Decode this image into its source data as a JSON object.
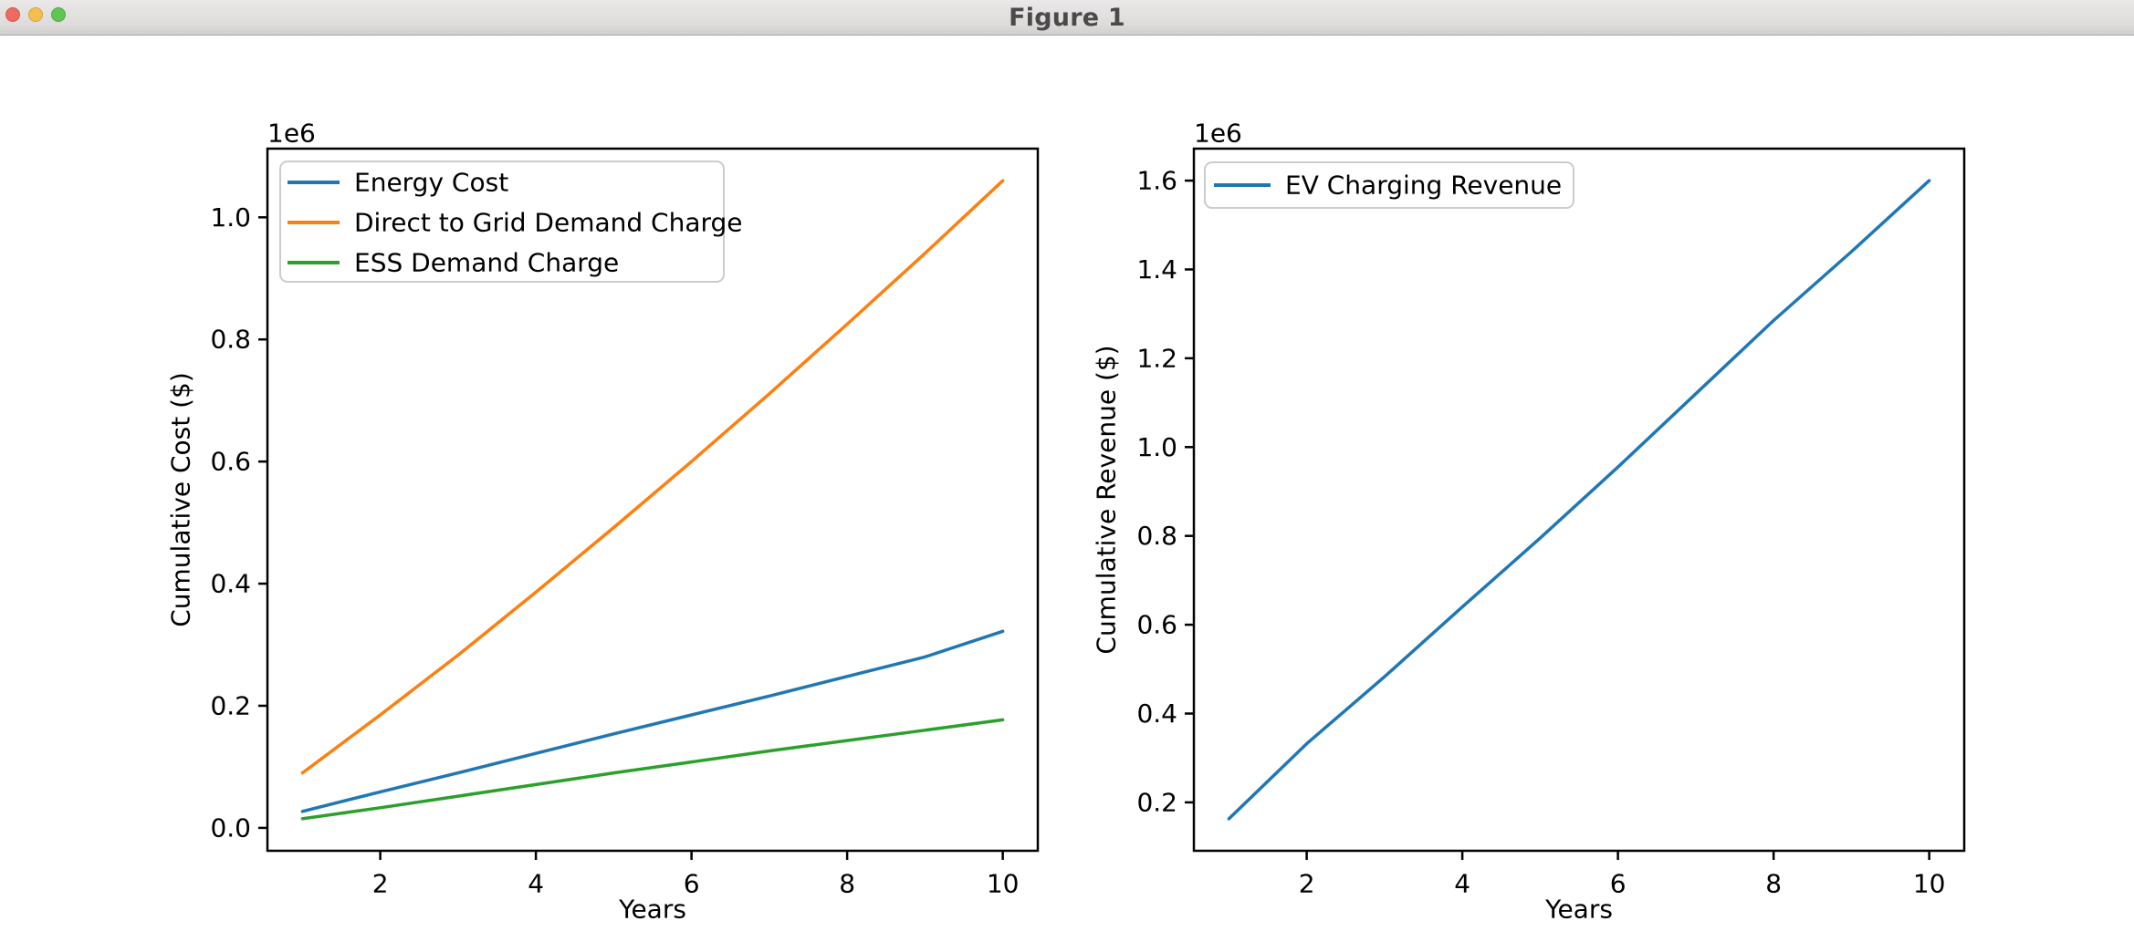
{
  "window": {
    "title": "Figure 1",
    "controls": {
      "close": "close",
      "minimize": "minimize",
      "zoom": "zoom"
    },
    "traffic_light_colors": {
      "close": "#ee6a5f",
      "minimize": "#f5bf4f",
      "zoom": "#61c554"
    }
  },
  "chart_data": [
    {
      "type": "line",
      "title": "",
      "xlabel": "Years",
      "ylabel": "Cumulative Cost ($)",
      "offset_label": "1e6",
      "x": [
        1,
        2,
        3,
        4,
        5,
        6,
        7,
        8,
        9,
        10
      ],
      "series": [
        {
          "name": "Energy Cost",
          "color": "#1f77b4",
          "values": [
            27000,
            59000,
            90000,
            122000,
            154000,
            185000,
            216000,
            248000,
            280000,
            322000
          ]
        },
        {
          "name": "Direct to Grid Demand Charge",
          "color": "#ff7f0e",
          "values": [
            90000,
            185000,
            283000,
            386000,
            492000,
            600000,
            711000,
            825000,
            941000,
            1060000
          ]
        },
        {
          "name": "ESS Demand Charge",
          "color": "#2ca02c",
          "values": [
            15000,
            33000,
            52000,
            71000,
            90000,
            108000,
            126000,
            143000,
            160000,
            177000
          ]
        }
      ],
      "xticks": [
        2,
        4,
        6,
        8,
        10
      ],
      "yticks": [
        0,
        200000,
        400000,
        600000,
        800000,
        1000000
      ],
      "xlim": [
        0.55,
        10.45
      ],
      "ylim": [
        -37500,
        1112500
      ],
      "grid": false,
      "legend": {
        "location": "upper left",
        "entries": [
          "Energy Cost",
          "Direct to Grid Demand Charge",
          "ESS Demand Charge"
        ]
      }
    },
    {
      "type": "line",
      "title": "",
      "xlabel": "Years",
      "ylabel": "Cumulative Revenue ($)",
      "offset_label": "1e6",
      "x": [
        1,
        2,
        3,
        4,
        5,
        6,
        7,
        8,
        9,
        10
      ],
      "series": [
        {
          "name": "EV Charging Revenue",
          "color": "#1f77b4",
          "values": [
            163000,
            332000,
            483000,
            640000,
            795000,
            955000,
            1120000,
            1285000,
            1440000,
            1600000
          ]
        }
      ],
      "xticks": [
        2,
        4,
        6,
        8,
        10
      ],
      "yticks": [
        200000,
        400000,
        600000,
        800000,
        1000000,
        1200000,
        1400000,
        1600000
      ],
      "xlim": [
        0.55,
        10.45
      ],
      "ylim": [
        91000,
        1672000
      ],
      "grid": false,
      "legend": {
        "location": "upper left",
        "entries": [
          "EV Charging Revenue"
        ]
      }
    }
  ]
}
